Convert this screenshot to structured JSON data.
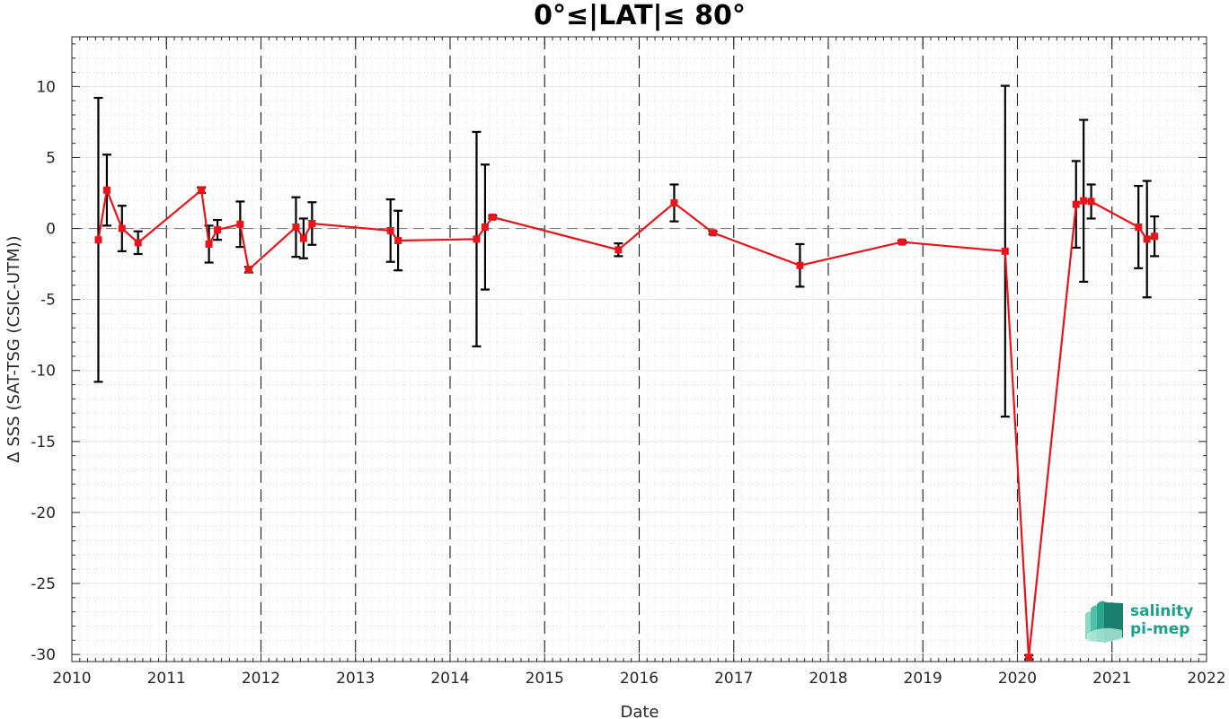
{
  "chart_data": {
    "type": "line",
    "title": "0°≤|LAT|≤ 80°",
    "xlabel": "Date",
    "ylabel": "Δ SSS (SAT-TSG (CSIC-UTM))",
    "xlim": [
      2010,
      2022
    ],
    "ylim": [
      -30.5,
      13.5
    ],
    "x_ticks": [
      "2010",
      "2011",
      "2012",
      "2013",
      "2014",
      "2015",
      "2016",
      "2017",
      "2018",
      "2019",
      "2020",
      "2021",
      "2022"
    ],
    "y_ticks": [
      "10",
      "5",
      "0",
      "-5",
      "-10",
      "-15",
      "-20",
      "-25",
      "-30"
    ],
    "grid": true,
    "year_lines": "dashed",
    "zero_line": "dashed",
    "colors": {
      "line": "#e8141a",
      "errorbar": "#000000",
      "grid": "#d9d9d9"
    },
    "points": [
      {
        "x": 2010.28,
        "y": -0.8,
        "err": 10.0
      },
      {
        "x": 2010.37,
        "y": 2.7,
        "err": 2.5
      },
      {
        "x": 2010.53,
        "y": 0.0,
        "err": 1.6
      },
      {
        "x": 2010.7,
        "y": -1.0,
        "err": 0.8
      },
      {
        "x": 2011.37,
        "y": 2.7,
        "err": 0.2
      },
      {
        "x": 2011.45,
        "y": -1.1,
        "err": 1.3
      },
      {
        "x": 2011.54,
        "y": -0.1,
        "err": 0.7
      },
      {
        "x": 2011.78,
        "y": 0.3,
        "err": 1.6
      },
      {
        "x": 2011.87,
        "y": -2.9,
        "err": 0.2
      },
      {
        "x": 2012.37,
        "y": 0.1,
        "err": 2.1
      },
      {
        "x": 2012.45,
        "y": -0.7,
        "err": 1.4
      },
      {
        "x": 2012.54,
        "y": 0.35,
        "err": 1.5
      },
      {
        "x": 2013.37,
        "y": -0.15,
        "err": 2.2
      },
      {
        "x": 2013.45,
        "y": -0.85,
        "err": 2.1
      },
      {
        "x": 2014.28,
        "y": -0.75,
        "err": 7.55
      },
      {
        "x": 2014.37,
        "y": 0.1,
        "err": 4.4
      },
      {
        "x": 2014.45,
        "y": 0.8,
        "err": 0.1
      },
      {
        "x": 2015.78,
        "y": -1.5,
        "err": 0.45
      },
      {
        "x": 2016.37,
        "y": 1.8,
        "err": 1.3
      },
      {
        "x": 2016.78,
        "y": -0.3,
        "err": 0.1
      },
      {
        "x": 2017.7,
        "y": -2.6,
        "err": 1.5
      },
      {
        "x": 2018.78,
        "y": -0.95,
        "err": 0.1
      },
      {
        "x": 2019.87,
        "y": -1.6,
        "err": 11.65
      },
      {
        "x": 2020.12,
        "y": -30.2,
        "err": 0.15
      },
      {
        "x": 2020.62,
        "y": 1.7,
        "err": 3.05
      },
      {
        "x": 2020.7,
        "y": 1.95,
        "err": 5.7
      },
      {
        "x": 2020.78,
        "y": 1.9,
        "err": 1.2
      },
      {
        "x": 2021.28,
        "y": 0.1,
        "err": 2.9
      },
      {
        "x": 2021.37,
        "y": -0.75,
        "err": 4.1
      },
      {
        "x": 2021.45,
        "y": -0.55,
        "err": 1.4
      }
    ]
  },
  "logo": {
    "line1": "salinity",
    "line2": "pi-mep"
  }
}
